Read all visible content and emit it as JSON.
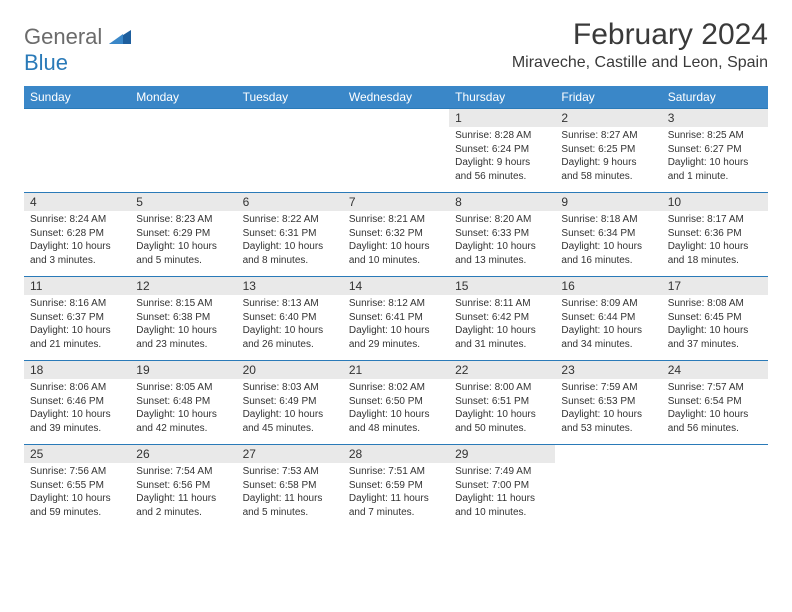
{
  "logo": {
    "word1": "General",
    "word2": "Blue"
  },
  "title": "February 2024",
  "location": "Miraveche, Castille and Leon, Spain",
  "colors": {
    "header_bg": "#3a87c8",
    "header_text": "#ffffff",
    "daynum_bg": "#e9e9e9",
    "border": "#2a7ab8",
    "logo_gray": "#6b6b6b",
    "logo_blue": "#2a7ab8"
  },
  "weekdays": [
    "Sunday",
    "Monday",
    "Tuesday",
    "Wednesday",
    "Thursday",
    "Friday",
    "Saturday"
  ],
  "weeks": [
    [
      null,
      null,
      null,
      null,
      {
        "n": "1",
        "sr": "Sunrise: 8:28 AM",
        "ss": "Sunset: 6:24 PM",
        "dl": "Daylight: 9 hours and 56 minutes."
      },
      {
        "n": "2",
        "sr": "Sunrise: 8:27 AM",
        "ss": "Sunset: 6:25 PM",
        "dl": "Daylight: 9 hours and 58 minutes."
      },
      {
        "n": "3",
        "sr": "Sunrise: 8:25 AM",
        "ss": "Sunset: 6:27 PM",
        "dl": "Daylight: 10 hours and 1 minute."
      }
    ],
    [
      {
        "n": "4",
        "sr": "Sunrise: 8:24 AM",
        "ss": "Sunset: 6:28 PM",
        "dl": "Daylight: 10 hours and 3 minutes."
      },
      {
        "n": "5",
        "sr": "Sunrise: 8:23 AM",
        "ss": "Sunset: 6:29 PM",
        "dl": "Daylight: 10 hours and 5 minutes."
      },
      {
        "n": "6",
        "sr": "Sunrise: 8:22 AM",
        "ss": "Sunset: 6:31 PM",
        "dl": "Daylight: 10 hours and 8 minutes."
      },
      {
        "n": "7",
        "sr": "Sunrise: 8:21 AM",
        "ss": "Sunset: 6:32 PM",
        "dl": "Daylight: 10 hours and 10 minutes."
      },
      {
        "n": "8",
        "sr": "Sunrise: 8:20 AM",
        "ss": "Sunset: 6:33 PM",
        "dl": "Daylight: 10 hours and 13 minutes."
      },
      {
        "n": "9",
        "sr": "Sunrise: 8:18 AM",
        "ss": "Sunset: 6:34 PM",
        "dl": "Daylight: 10 hours and 16 minutes."
      },
      {
        "n": "10",
        "sr": "Sunrise: 8:17 AM",
        "ss": "Sunset: 6:36 PM",
        "dl": "Daylight: 10 hours and 18 minutes."
      }
    ],
    [
      {
        "n": "11",
        "sr": "Sunrise: 8:16 AM",
        "ss": "Sunset: 6:37 PM",
        "dl": "Daylight: 10 hours and 21 minutes."
      },
      {
        "n": "12",
        "sr": "Sunrise: 8:15 AM",
        "ss": "Sunset: 6:38 PM",
        "dl": "Daylight: 10 hours and 23 minutes."
      },
      {
        "n": "13",
        "sr": "Sunrise: 8:13 AM",
        "ss": "Sunset: 6:40 PM",
        "dl": "Daylight: 10 hours and 26 minutes."
      },
      {
        "n": "14",
        "sr": "Sunrise: 8:12 AM",
        "ss": "Sunset: 6:41 PM",
        "dl": "Daylight: 10 hours and 29 minutes."
      },
      {
        "n": "15",
        "sr": "Sunrise: 8:11 AM",
        "ss": "Sunset: 6:42 PM",
        "dl": "Daylight: 10 hours and 31 minutes."
      },
      {
        "n": "16",
        "sr": "Sunrise: 8:09 AM",
        "ss": "Sunset: 6:44 PM",
        "dl": "Daylight: 10 hours and 34 minutes."
      },
      {
        "n": "17",
        "sr": "Sunrise: 8:08 AM",
        "ss": "Sunset: 6:45 PM",
        "dl": "Daylight: 10 hours and 37 minutes."
      }
    ],
    [
      {
        "n": "18",
        "sr": "Sunrise: 8:06 AM",
        "ss": "Sunset: 6:46 PM",
        "dl": "Daylight: 10 hours and 39 minutes."
      },
      {
        "n": "19",
        "sr": "Sunrise: 8:05 AM",
        "ss": "Sunset: 6:48 PM",
        "dl": "Daylight: 10 hours and 42 minutes."
      },
      {
        "n": "20",
        "sr": "Sunrise: 8:03 AM",
        "ss": "Sunset: 6:49 PM",
        "dl": "Daylight: 10 hours and 45 minutes."
      },
      {
        "n": "21",
        "sr": "Sunrise: 8:02 AM",
        "ss": "Sunset: 6:50 PM",
        "dl": "Daylight: 10 hours and 48 minutes."
      },
      {
        "n": "22",
        "sr": "Sunrise: 8:00 AM",
        "ss": "Sunset: 6:51 PM",
        "dl": "Daylight: 10 hours and 50 minutes."
      },
      {
        "n": "23",
        "sr": "Sunrise: 7:59 AM",
        "ss": "Sunset: 6:53 PM",
        "dl": "Daylight: 10 hours and 53 minutes."
      },
      {
        "n": "24",
        "sr": "Sunrise: 7:57 AM",
        "ss": "Sunset: 6:54 PM",
        "dl": "Daylight: 10 hours and 56 minutes."
      }
    ],
    [
      {
        "n": "25",
        "sr": "Sunrise: 7:56 AM",
        "ss": "Sunset: 6:55 PM",
        "dl": "Daylight: 10 hours and 59 minutes."
      },
      {
        "n": "26",
        "sr": "Sunrise: 7:54 AM",
        "ss": "Sunset: 6:56 PM",
        "dl": "Daylight: 11 hours and 2 minutes."
      },
      {
        "n": "27",
        "sr": "Sunrise: 7:53 AM",
        "ss": "Sunset: 6:58 PM",
        "dl": "Daylight: 11 hours and 5 minutes."
      },
      {
        "n": "28",
        "sr": "Sunrise: 7:51 AM",
        "ss": "Sunset: 6:59 PM",
        "dl": "Daylight: 11 hours and 7 minutes."
      },
      {
        "n": "29",
        "sr": "Sunrise: 7:49 AM",
        "ss": "Sunset: 7:00 PM",
        "dl": "Daylight: 11 hours and 10 minutes."
      },
      null,
      null
    ]
  ]
}
